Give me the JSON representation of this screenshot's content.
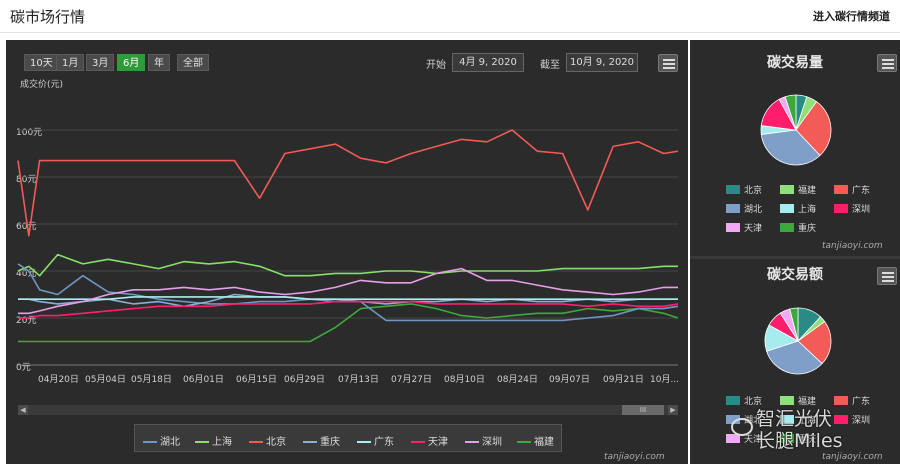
{
  "header": {
    "title": "碳市场行情",
    "link": "进入碳行情频道"
  },
  "toolbar": {
    "ranges": [
      "10天",
      "1月",
      "3月",
      "6月",
      "年",
      "全部"
    ],
    "active_range": "6月",
    "start_label": "开始",
    "start_date": "4月 9, 2020",
    "end_label": "截至",
    "end_date": "10月 9, 2020"
  },
  "colors": {
    "湖北": "#6f95c4",
    "上海": "#86e06a",
    "北京": "#f25a55",
    "重庆": "#8aaed6",
    "广东": "#a8eef0",
    "天津": "#ff1f6e",
    "深圳": "#e79ee9",
    "福建": "#3caa3c"
  },
  "chart_data": [
    {
      "type": "line",
      "ylabel": "成交价(元)",
      "ylim": [
        0,
        100
      ],
      "yticks": [
        "0元",
        "20元",
        "40元",
        "60元",
        "80元",
        "100元"
      ],
      "x_tick_labels": [
        "04月20日",
        "05月04日",
        "05月18日",
        "06月01日",
        "06月15日",
        "06月29日",
        "07月13日",
        "07月27日",
        "08月10日",
        "08月24日",
        "09月07日",
        "09月21日",
        "10月..."
      ],
      "x": [
        "2020-04-09",
        "2020-04-12",
        "2020-04-15",
        "2020-04-20",
        "2020-04-27",
        "2020-05-04",
        "2020-05-11",
        "2020-05-18",
        "2020-05-25",
        "2020-06-01",
        "2020-06-08",
        "2020-06-15",
        "2020-06-22",
        "2020-06-29",
        "2020-07-06",
        "2020-07-13",
        "2020-07-20",
        "2020-07-27",
        "2020-08-03",
        "2020-08-10",
        "2020-08-17",
        "2020-08-24",
        "2020-08-31",
        "2020-09-07",
        "2020-09-14",
        "2020-09-21",
        "2020-09-28",
        "2020-10-05",
        "2020-10-09"
      ],
      "series": [
        {
          "name": "北京",
          "values": [
            87,
            55,
            87,
            87,
            87,
            87,
            87,
            87,
            87,
            87,
            87,
            71,
            90,
            92,
            94,
            88,
            86,
            90,
            93,
            96,
            95,
            100,
            91,
            90,
            66,
            93,
            95,
            90,
            91
          ]
        },
        {
          "name": "福建",
          "values": [
            10,
            10,
            10,
            10,
            10,
            10,
            10,
            10,
            10,
            10,
            10,
            10,
            10,
            10,
            16,
            24,
            25,
            26,
            24,
            21,
            20,
            21,
            22,
            22,
            24,
            23,
            24,
            22,
            20
          ]
        },
        {
          "name": "上海",
          "values": [
            40,
            42,
            38,
            47,
            43,
            45,
            43,
            41,
            44,
            43,
            44,
            42,
            38,
            38,
            39,
            39,
            40,
            40,
            39,
            40,
            40,
            40,
            40,
            41,
            41,
            41,
            41,
            42,
            42
          ]
        },
        {
          "name": "湖北",
          "values": [
            43,
            40,
            32,
            30,
            38,
            31,
            30,
            28,
            27,
            26,
            26,
            27,
            27,
            28,
            27,
            27,
            19,
            19,
            19,
            19,
            19,
            19,
            19,
            19,
            20,
            21,
            24,
            24,
            25
          ]
        },
        {
          "name": "重庆",
          "values": [
            28,
            28,
            27,
            26,
            27,
            28,
            26,
            27,
            25,
            27,
            30,
            29,
            29,
            28,
            28,
            27,
            26,
            27,
            27,
            28,
            27,
            28,
            27,
            27,
            28,
            27,
            28,
            28,
            28
          ]
        },
        {
          "name": "广东",
          "values": [
            28,
            28,
            28,
            28,
            28,
            28,
            29,
            29,
            29,
            29,
            29,
            29,
            29,
            28,
            28,
            28,
            28,
            28,
            28,
            28,
            28,
            28,
            28,
            28,
            28,
            28,
            28,
            28,
            28
          ]
        },
        {
          "name": "天津",
          "values": [
            20,
            20,
            21,
            21,
            22,
            23,
            24,
            25,
            25,
            25,
            26,
            26,
            26,
            26,
            27,
            27,
            27,
            27,
            26,
            26,
            26,
            26,
            26,
            26,
            25,
            26,
            25,
            25,
            26
          ]
        },
        {
          "name": "深圳",
          "values": [
            22,
            22,
            23,
            25,
            27,
            30,
            32,
            32,
            33,
            32,
            33,
            31,
            30,
            31,
            33,
            36,
            35,
            35,
            39,
            41,
            36,
            36,
            34,
            32,
            31,
            30,
            31,
            33,
            33
          ]
        }
      ],
      "legend": [
        "湖北",
        "上海",
        "北京",
        "重庆",
        "广东",
        "天津",
        "深圳",
        "福建"
      ],
      "grid": true
    },
    {
      "type": "pie",
      "title": "碳交易量",
      "slices": [
        {
          "name": "北京",
          "value": 5
        },
        {
          "name": "福建",
          "value": 5
        },
        {
          "name": "广东",
          "value": 28
        },
        {
          "name": "湖北",
          "value": 35
        },
        {
          "name": "上海",
          "value": 4
        },
        {
          "name": "深圳",
          "value": 15
        },
        {
          "name": "天津",
          "value": 3
        },
        {
          "name": "重庆",
          "value": 5
        }
      ],
      "legend": [
        "北京",
        "福建",
        "广东",
        "湖北",
        "上海",
        "深圳",
        "天津",
        "重庆"
      ]
    },
    {
      "type": "pie",
      "title": "碳交易额",
      "slices": [
        {
          "name": "北京",
          "value": 12
        },
        {
          "name": "福建",
          "value": 3
        },
        {
          "name": "广东",
          "value": 22
        },
        {
          "name": "湖北",
          "value": 33
        },
        {
          "name": "上海",
          "value": 13
        },
        {
          "name": "深圳",
          "value": 8
        },
        {
          "name": "天津",
          "value": 5
        },
        {
          "name": "重庆",
          "value": 4
        }
      ],
      "legend": [
        "北京",
        "福建",
        "广东",
        "湖北",
        "上海",
        "深圳",
        "天津",
        "重庆"
      ]
    }
  ],
  "pie_colors": {
    "北京": "#2a8a86",
    "福建": "#8fe07a",
    "广东": "#f35c56",
    "湖北": "#7f9fc8",
    "上海": "#a6ecee",
    "深圳": "#ff1d6c",
    "天津": "#f0a9f2",
    "重庆": "#3aa83a"
  },
  "credit": "tanjiaoyi.com",
  "watermark": {
    "line1": "智汇光伏",
    "line2": "长腿Miles"
  },
  "scroll_thumb": "III"
}
